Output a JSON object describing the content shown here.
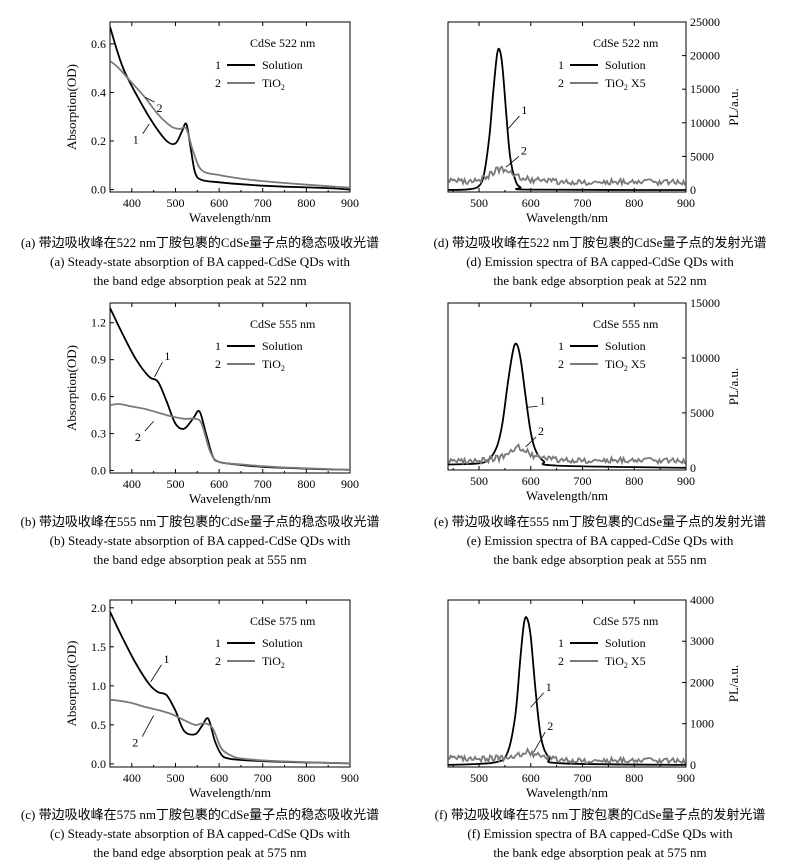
{
  "chart_data": [
    {
      "id": "a",
      "type": "line",
      "legend_title": "CdSe 522 nm",
      "xlabel": "Wavelength/nm",
      "ylabel": "Absorption(OD)",
      "y2label": "",
      "xlim": [
        350,
        900
      ],
      "ylim": [
        -0.01,
        0.69
      ],
      "xticks": [
        400,
        500,
        600,
        700,
        800,
        900
      ],
      "yticks": [
        0.0,
        0.2,
        0.4,
        0.6
      ],
      "ytick_labels": [
        "0.0",
        "0.2",
        "0.4",
        "0.6"
      ],
      "series": [
        {
          "num": "1",
          "name": "Solution",
          "color": "#000000",
          "noise": false,
          "x": [
            350,
            380,
            420,
            450,
            480,
            500,
            515,
            525,
            535,
            545,
            560,
            600,
            650,
            700,
            750,
            800,
            850,
            900
          ],
          "y": [
            0.67,
            0.5,
            0.36,
            0.27,
            0.2,
            0.19,
            0.24,
            0.27,
            0.17,
            0.07,
            0.04,
            0.03,
            0.022,
            0.016,
            0.012,
            0.009,
            0.006,
            0.0
          ]
        },
        {
          "num": "2",
          "name": "TiO2",
          "color": "#7a7a7a",
          "noise": false,
          "x": [
            350,
            370,
            400,
            430,
            460,
            490,
            510,
            525,
            540,
            560,
            600,
            650,
            700,
            750,
            800,
            850,
            900
          ],
          "y": [
            0.53,
            0.5,
            0.44,
            0.38,
            0.31,
            0.26,
            0.25,
            0.25,
            0.16,
            0.08,
            0.06,
            0.045,
            0.035,
            0.027,
            0.02,
            0.014,
            0.008
          ]
        }
      ],
      "annotations": [
        {
          "label": "1",
          "lx": 425,
          "ly": 0.23,
          "tx": 440,
          "ty": 0.27
        },
        {
          "label": "2",
          "lx": 452,
          "ly": 0.36,
          "tx": 430,
          "ty": 0.38
        }
      ],
      "caption_cn": "(a) 带边吸收峰在522 nm丁胺包裹的CdSe量子点的稳态吸收光谱",
      "caption_en1": "(a) Steady-state absorption of BA capped-CdSe QDs with",
      "caption_en2": "the band edge absorption peak at 522 nm"
    },
    {
      "id": "b",
      "type": "line",
      "legend_title": "CdSe 555 nm",
      "xlabel": "Wavelength/nm",
      "ylabel": "Absorption(OD)",
      "y2label": "",
      "xlim": [
        350,
        900
      ],
      "ylim": [
        -0.02,
        1.36
      ],
      "xticks": [
        400,
        500,
        600,
        700,
        800,
        900
      ],
      "yticks": [
        0.0,
        0.3,
        0.6,
        0.9,
        1.2
      ],
      "ytick_labels": [
        "0.0",
        "0.3",
        "0.6",
        "0.9",
        "1.2"
      ],
      "series": [
        {
          "num": "1",
          "name": "Solution",
          "color": "#000000",
          "noise": false,
          "x": [
            350,
            380,
            410,
            440,
            460,
            480,
            500,
            520,
            540,
            555,
            570,
            585,
            600,
            650,
            700,
            750,
            800,
            850,
            900
          ],
          "y": [
            1.32,
            1.1,
            0.9,
            0.76,
            0.72,
            0.56,
            0.38,
            0.34,
            0.42,
            0.48,
            0.3,
            0.12,
            0.07,
            0.045,
            0.03,
            0.022,
            0.015,
            0.01,
            0.005
          ]
        },
        {
          "num": "2",
          "name": "TiO2",
          "color": "#7a7a7a",
          "noise": false,
          "x": [
            350,
            370,
            400,
            430,
            460,
            490,
            520,
            545,
            560,
            580,
            600,
            650,
            700,
            750,
            800,
            850,
            900
          ],
          "y": [
            0.53,
            0.54,
            0.52,
            0.5,
            0.47,
            0.44,
            0.42,
            0.42,
            0.38,
            0.15,
            0.07,
            0.05,
            0.035,
            0.025,
            0.018,
            0.012,
            0.006
          ]
        }
      ],
      "annotations": [
        {
          "label": "1",
          "lx": 470,
          "ly": 0.88,
          "tx": 452,
          "ty": 0.76
        },
        {
          "label": "2",
          "lx": 430,
          "ly": 0.32,
          "tx": 450,
          "ty": 0.4
        }
      ],
      "caption_cn": "(b) 带边吸收峰在555 nm丁胺包裹的CdSe量子点的稳态吸收光谱",
      "caption_en1": "(b) Steady-state absorption of BA capped-CdSe QDs with",
      "caption_en2": "the band edge absorption peak at 555 nm"
    },
    {
      "id": "c",
      "type": "line",
      "legend_title": "CdSe 575 nm",
      "xlabel": "Wavelength/nm",
      "ylabel": "Absorption(OD)",
      "y2label": "",
      "xlim": [
        350,
        900
      ],
      "ylim": [
        -0.04,
        2.1
      ],
      "xticks": [
        400,
        500,
        600,
        700,
        800,
        900
      ],
      "yticks": [
        0.0,
        0.5,
        1.0,
        1.5,
        2.0
      ],
      "ytick_labels": [
        "0.0",
        "0.5",
        "1.0",
        "1.5",
        "2.0"
      ],
      "series": [
        {
          "num": "1",
          "name": "Solution",
          "color": "#000000",
          "noise": false,
          "x": [
            350,
            380,
            410,
            440,
            460,
            480,
            500,
            520,
            545,
            560,
            575,
            590,
            605,
            620,
            650,
            700,
            750,
            800,
            850,
            900
          ],
          "y": [
            1.95,
            1.6,
            1.28,
            1.02,
            0.92,
            0.88,
            0.68,
            0.42,
            0.38,
            0.48,
            0.58,
            0.3,
            0.12,
            0.07,
            0.05,
            0.035,
            0.025,
            0.018,
            0.012,
            0.006
          ]
        },
        {
          "num": "2",
          "name": "TiO2",
          "color": "#7a7a7a",
          "noise": false,
          "x": [
            350,
            370,
            400,
            430,
            460,
            490,
            520,
            545,
            565,
            585,
            605,
            630,
            650,
            700,
            750,
            800,
            850,
            900
          ],
          "y": [
            0.82,
            0.81,
            0.78,
            0.73,
            0.69,
            0.64,
            0.56,
            0.5,
            0.52,
            0.46,
            0.2,
            0.1,
            0.07,
            0.045,
            0.032,
            0.022,
            0.014,
            0.007
          ]
        }
      ],
      "annotations": [
        {
          "label": "1",
          "lx": 468,
          "ly": 1.27,
          "tx": 443,
          "ty": 1.05
        },
        {
          "label": "2",
          "lx": 424,
          "ly": 0.35,
          "tx": 450,
          "ty": 0.62
        }
      ],
      "caption_cn": "(c) 带边吸收峰在575 nm丁胺包裹的CdSe量子点的稳态吸收光谱",
      "caption_en1": "(c) Steady-state absorption of BA capped-CdSe QDs with",
      "caption_en2": "the band edge absorption peak at 575 nm"
    },
    {
      "id": "d",
      "type": "line",
      "legend_title": "CdSe 522 nm",
      "xlabel": "Wavelength/nm",
      "ylabel": "",
      "y2label": "PL/a.u.",
      "xlim": [
        440,
        900
      ],
      "ylim": [
        -300,
        25000
      ],
      "xticks": [
        500,
        600,
        700,
        800,
        900
      ],
      "yticks": [
        0,
        5000,
        10000,
        15000,
        20000,
        25000
      ],
      "ytick_labels": [
        "0",
        "5000",
        "10000",
        "15000",
        "20000",
        "25000"
      ],
      "series": [
        {
          "num": "1",
          "name": "Solution",
          "color": "#000000",
          "noise": false,
          "x": [
            440,
            480,
            500,
            510,
            520,
            528,
            535,
            540,
            545,
            552,
            560,
            570,
            580,
            600,
            900
          ],
          "y": [
            0,
            100,
            600,
            2500,
            8000,
            15000,
            20300,
            20800,
            18500,
            12000,
            5000,
            1500,
            400,
            50,
            0
          ]
        },
        {
          "num": "2",
          "name": "TiO2 X5",
          "color": "#7a7a7a",
          "noise": true,
          "x": [
            440,
            480,
            500,
            520,
            535,
            545,
            560,
            580,
            600,
            650,
            700,
            800,
            900
          ],
          "y": [
            1400,
            1300,
            1500,
            2200,
            3000,
            3100,
            2600,
            1800,
            1500,
            1300,
            1200,
            1150,
            1100
          ]
        }
      ],
      "annotations": [
        {
          "label": "1",
          "lx": 578,
          "ly": 11000,
          "tx": 555,
          "ty": 9000
        },
        {
          "label": "2",
          "lx": 577,
          "ly": 5000,
          "tx": 552,
          "ty": 3400
        }
      ],
      "caption_cn": "(d) 带边吸收峰在522 nm丁胺包裹的CdSe量子点的发射光谱",
      "caption_en1": "(d) Emission spectra of BA capped-CdSe QDs with",
      "caption_en2": "the bank edge absorption peak at 522 nm"
    },
    {
      "id": "e",
      "type": "line",
      "legend_title": "CdSe 555 nm",
      "xlabel": "Wavelength/nm",
      "ylabel": "",
      "y2label": "PL/a.u.",
      "xlim": [
        440,
        900
      ],
      "ylim": [
        -200,
        15000
      ],
      "xticks": [
        500,
        600,
        700,
        800,
        900
      ],
      "yticks": [
        0,
        5000,
        10000,
        15000
      ],
      "ytick_labels": [
        "0",
        "5000",
        "10000",
        "15000"
      ],
      "series": [
        {
          "num": "1",
          "name": "Solution",
          "color": "#000000",
          "noise": false,
          "x": [
            440,
            500,
            520,
            535,
            545,
            555,
            565,
            572,
            580,
            590,
            600,
            610,
            625,
            650,
            900
          ],
          "y": [
            300,
            400,
            800,
            2000,
            4000,
            7500,
            10500,
            11300,
            10000,
            6500,
            3200,
            1500,
            600,
            200,
            0
          ]
        },
        {
          "num": "2",
          "name": "TiO2 X5",
          "color": "#7a7a7a",
          "noise": true,
          "x": [
            440,
            500,
            540,
            560,
            575,
            590,
            610,
            640,
            700,
            800,
            900
          ],
          "y": [
            600,
            650,
            900,
            1400,
            1900,
            1500,
            1000,
            800,
            700,
            650,
            600
          ]
        }
      ],
      "annotations": [
        {
          "label": "1",
          "lx": 613,
          "ly": 5600,
          "tx": 592,
          "ty": 5500
        },
        {
          "label": "2",
          "lx": 610,
          "ly": 2800,
          "tx": 590,
          "ty": 1900
        }
      ],
      "caption_cn": "(e) 带边吸收峰在555 nm丁胺包裹的CdSe量子点的发射光谱",
      "caption_en1": "(e) Emission spectra of BA capped-CdSe QDs with",
      "caption_en2": "the bank edge absorption peak at 555 nm"
    },
    {
      "id": "f",
      "type": "line",
      "legend_title": "CdSe 575 nm",
      "xlabel": "Wavelength/nm",
      "ylabel": "",
      "y2label": "PL/a.u.",
      "xlim": [
        440,
        900
      ],
      "ylim": [
        -50,
        4000
      ],
      "xticks": [
        500,
        600,
        700,
        800,
        900
      ],
      "yticks": [
        0,
        1000,
        2000,
        3000,
        4000
      ],
      "ytick_labels": [
        "0",
        "1000",
        "2000",
        "3000",
        "4000"
      ],
      "series": [
        {
          "num": "1",
          "name": "Solution",
          "color": "#000000",
          "noise": false,
          "x": [
            440,
            530,
            555,
            570,
            580,
            587,
            593,
            600,
            610,
            620,
            635,
            660,
            900
          ],
          "y": [
            0,
            60,
            300,
            1200,
            2600,
            3450,
            3550,
            3100,
            1700,
            650,
            180,
            40,
            0
          ]
        },
        {
          "num": "2",
          "name": "TiO2 X5",
          "color": "#7a7a7a",
          "noise": true,
          "x": [
            440,
            500,
            560,
            580,
            595,
            610,
            640,
            700,
            800,
            900
          ],
          "y": [
            180,
            150,
            170,
            250,
            320,
            240,
            150,
            110,
            100,
            90
          ]
        }
      ],
      "annotations": [
        {
          "label": "1",
          "lx": 625,
          "ly": 1750,
          "tx": 600,
          "ty": 1400
        },
        {
          "label": "2",
          "lx": 628,
          "ly": 800,
          "tx": 605,
          "ty": 300
        }
      ],
      "caption_cn": "(f) 带边吸收峰在575 nm丁胺包裹的CdSe量子点的发射光谱",
      "caption_en1": "(f) Emission spectra of BA capped-CdSe QDs with",
      "caption_en2": "the bank edge absorption peak at 575 nm"
    }
  ]
}
